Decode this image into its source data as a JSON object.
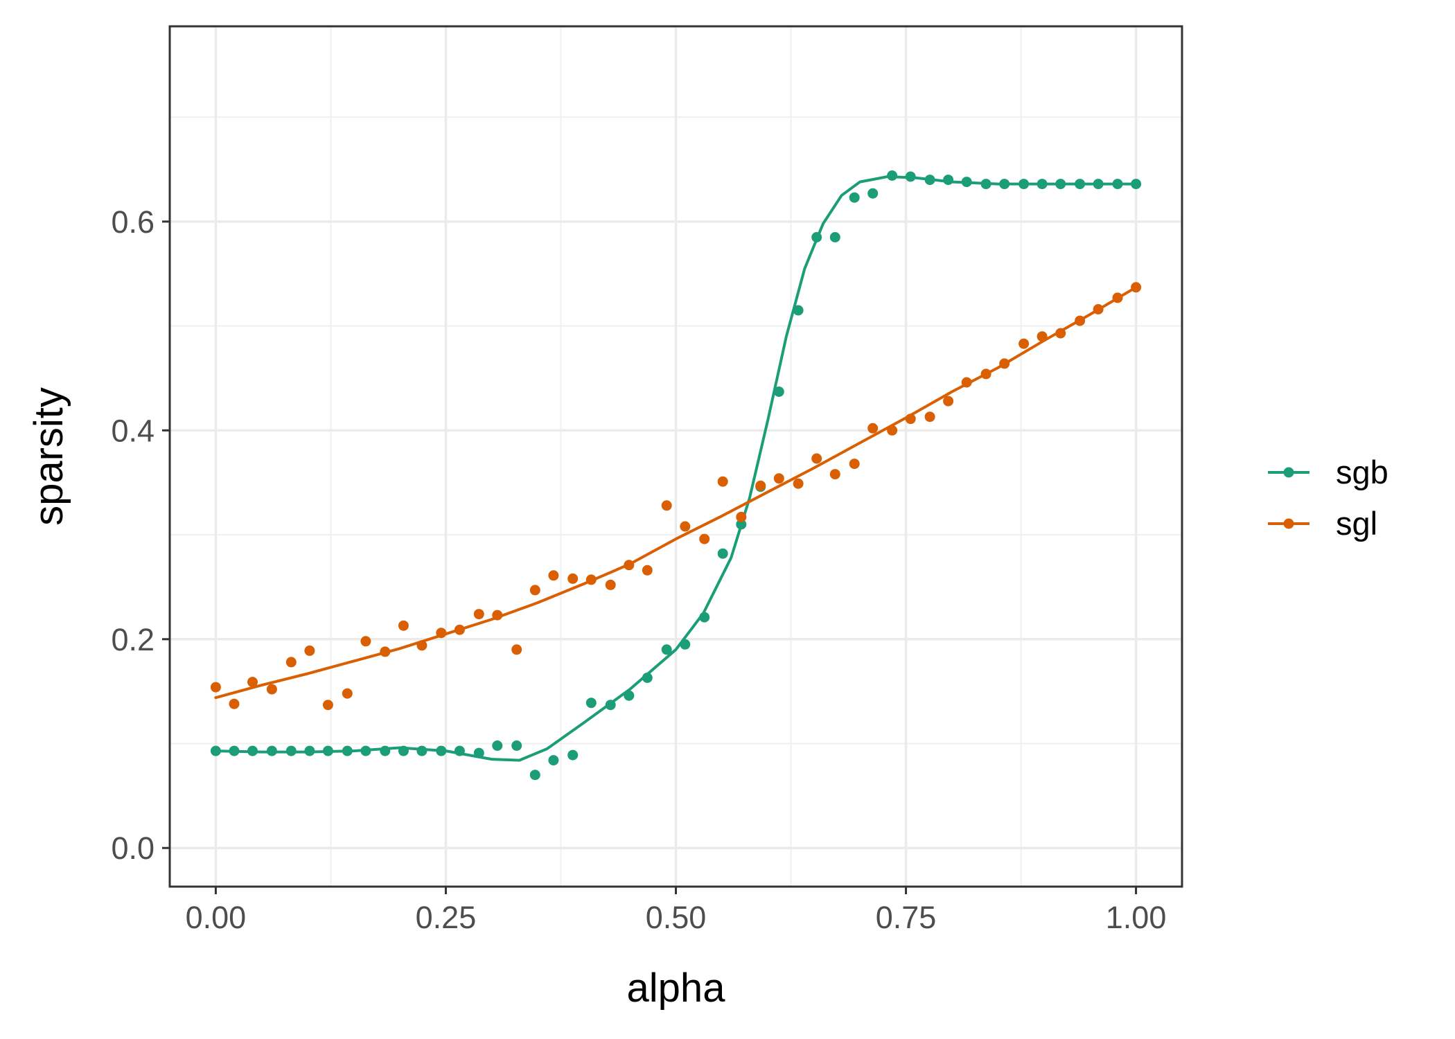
{
  "chart_data": {
    "type": "scatter",
    "xlabel": "alpha",
    "ylabel": "sparsity",
    "xlim": [
      -0.05,
      1.05
    ],
    "ylim": [
      -0.037,
      0.787
    ],
    "x_ticks": [
      0.0,
      0.25,
      0.5,
      0.75,
      1.0
    ],
    "x_tick_labels": [
      "0.00",
      "0.25",
      "0.50",
      "0.75",
      "1.00"
    ],
    "y_ticks": [
      0.0,
      0.2,
      0.4,
      0.6
    ],
    "y_tick_labels": [
      "0.0",
      "0.2",
      "0.4",
      "0.6"
    ],
    "grid": true,
    "legend_position": "right",
    "series": [
      {
        "name": "sgb",
        "color": "#1b9e77",
        "points": [
          [
            0.0,
            0.093
          ],
          [
            0.02,
            0.093
          ],
          [
            0.04,
            0.093
          ],
          [
            0.061,
            0.093
          ],
          [
            0.082,
            0.093
          ],
          [
            0.102,
            0.093
          ],
          [
            0.122,
            0.093
          ],
          [
            0.143,
            0.093
          ],
          [
            0.163,
            0.093
          ],
          [
            0.184,
            0.093
          ],
          [
            0.204,
            0.093
          ],
          [
            0.224,
            0.093
          ],
          [
            0.245,
            0.093
          ],
          [
            0.265,
            0.093
          ],
          [
            0.286,
            0.091
          ],
          [
            0.306,
            0.098
          ],
          [
            0.327,
            0.098
          ],
          [
            0.347,
            0.07
          ],
          [
            0.367,
            0.084
          ],
          [
            0.388,
            0.089
          ],
          [
            0.408,
            0.139
          ],
          [
            0.429,
            0.137
          ],
          [
            0.449,
            0.146
          ],
          [
            0.469,
            0.163
          ],
          [
            0.49,
            0.19
          ],
          [
            0.51,
            0.195
          ],
          [
            0.531,
            0.221
          ],
          [
            0.551,
            0.282
          ],
          [
            0.571,
            0.31
          ],
          [
            0.592,
            0.346
          ],
          [
            0.612,
            0.437
          ],
          [
            0.633,
            0.515
          ],
          [
            0.653,
            0.585
          ],
          [
            0.673,
            0.585
          ],
          [
            0.694,
            0.623
          ],
          [
            0.714,
            0.627
          ],
          [
            0.735,
            0.644
          ],
          [
            0.755,
            0.643
          ],
          [
            0.776,
            0.64
          ],
          [
            0.796,
            0.64
          ],
          [
            0.816,
            0.638
          ],
          [
            0.837,
            0.636
          ],
          [
            0.857,
            0.636
          ],
          [
            0.878,
            0.636
          ],
          [
            0.898,
            0.636
          ],
          [
            0.918,
            0.636
          ],
          [
            0.939,
            0.636
          ],
          [
            0.959,
            0.636
          ],
          [
            0.98,
            0.636
          ],
          [
            1.0,
            0.636
          ]
        ],
        "smooth": [
          [
            0.0,
            0.093
          ],
          [
            0.05,
            0.092
          ],
          [
            0.1,
            0.092
          ],
          [
            0.15,
            0.093
          ],
          [
            0.2,
            0.096
          ],
          [
            0.25,
            0.093
          ],
          [
            0.3,
            0.085
          ],
          [
            0.33,
            0.084
          ],
          [
            0.36,
            0.095
          ],
          [
            0.4,
            0.12
          ],
          [
            0.45,
            0.152
          ],
          [
            0.5,
            0.19
          ],
          [
            0.53,
            0.225
          ],
          [
            0.56,
            0.278
          ],
          [
            0.58,
            0.335
          ],
          [
            0.6,
            0.41
          ],
          [
            0.62,
            0.49
          ],
          [
            0.64,
            0.555
          ],
          [
            0.66,
            0.598
          ],
          [
            0.68,
            0.625
          ],
          [
            0.7,
            0.638
          ],
          [
            0.73,
            0.643
          ],
          [
            0.76,
            0.642
          ],
          [
            0.8,
            0.638
          ],
          [
            0.85,
            0.636
          ],
          [
            0.9,
            0.636
          ],
          [
            0.95,
            0.636
          ],
          [
            1.0,
            0.636
          ]
        ]
      },
      {
        "name": "sgl",
        "color": "#d95f02",
        "points": [
          [
            0.0,
            0.154
          ],
          [
            0.02,
            0.138
          ],
          [
            0.04,
            0.159
          ],
          [
            0.061,
            0.152
          ],
          [
            0.082,
            0.178
          ],
          [
            0.102,
            0.189
          ],
          [
            0.122,
            0.137
          ],
          [
            0.143,
            0.148
          ],
          [
            0.163,
            0.198
          ],
          [
            0.184,
            0.188
          ],
          [
            0.204,
            0.213
          ],
          [
            0.224,
            0.194
          ],
          [
            0.245,
            0.206
          ],
          [
            0.265,
            0.209
          ],
          [
            0.286,
            0.224
          ],
          [
            0.306,
            0.223
          ],
          [
            0.327,
            0.19
          ],
          [
            0.347,
            0.247
          ],
          [
            0.367,
            0.261
          ],
          [
            0.388,
            0.258
          ],
          [
            0.408,
            0.257
          ],
          [
            0.429,
            0.252
          ],
          [
            0.449,
            0.271
          ],
          [
            0.469,
            0.266
          ],
          [
            0.49,
            0.328
          ],
          [
            0.51,
            0.308
          ],
          [
            0.531,
            0.296
          ],
          [
            0.551,
            0.351
          ],
          [
            0.571,
            0.317
          ],
          [
            0.592,
            0.347
          ],
          [
            0.612,
            0.354
          ],
          [
            0.633,
            0.349
          ],
          [
            0.653,
            0.373
          ],
          [
            0.673,
            0.358
          ],
          [
            0.694,
            0.368
          ],
          [
            0.714,
            0.402
          ],
          [
            0.735,
            0.4
          ],
          [
            0.755,
            0.411
          ],
          [
            0.776,
            0.413
          ],
          [
            0.796,
            0.428
          ],
          [
            0.816,
            0.446
          ],
          [
            0.837,
            0.454
          ],
          [
            0.857,
            0.464
          ],
          [
            0.878,
            0.483
          ],
          [
            0.898,
            0.49
          ],
          [
            0.918,
            0.493
          ],
          [
            0.939,
            0.505
          ],
          [
            0.959,
            0.516
          ],
          [
            0.98,
            0.527
          ],
          [
            1.0,
            0.537
          ]
        ],
        "smooth": [
          [
            0.0,
            0.144
          ],
          [
            0.05,
            0.156
          ],
          [
            0.1,
            0.167
          ],
          [
            0.15,
            0.179
          ],
          [
            0.2,
            0.191
          ],
          [
            0.25,
            0.205
          ],
          [
            0.3,
            0.219
          ],
          [
            0.35,
            0.235
          ],
          [
            0.4,
            0.253
          ],
          [
            0.45,
            0.272
          ],
          [
            0.5,
            0.296
          ],
          [
            0.55,
            0.318
          ],
          [
            0.6,
            0.341
          ],
          [
            0.65,
            0.364
          ],
          [
            0.7,
            0.388
          ],
          [
            0.75,
            0.412
          ],
          [
            0.8,
            0.437
          ],
          [
            0.85,
            0.46
          ],
          [
            0.9,
            0.486
          ],
          [
            0.95,
            0.511
          ],
          [
            1.0,
            0.537
          ]
        ]
      }
    ]
  }
}
